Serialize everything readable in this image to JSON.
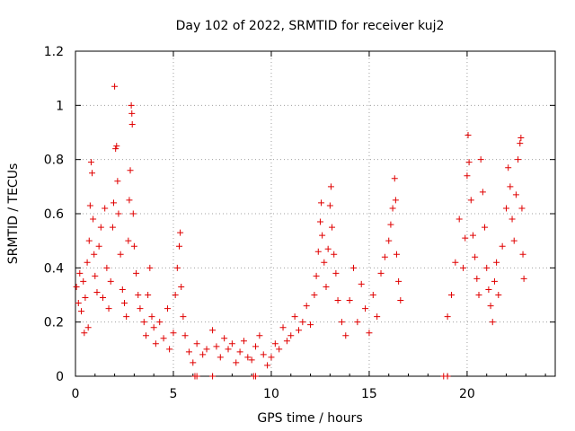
{
  "chart_data": {
    "type": "scatter",
    "title": "Day 102 of 2022, SRMTID for receiver kuj2",
    "xlabel": "GPS time / hours",
    "ylabel": "SRMTID / TECUs",
    "xlim": [
      0,
      24.5
    ],
    "ylim": [
      0,
      1.2
    ],
    "xticks": [
      0,
      5,
      10,
      15,
      20
    ],
    "xtick_labels": [
      "0",
      "5",
      "10",
      "15",
      "20"
    ],
    "yticks": [
      0,
      0.2,
      0.4,
      0.6,
      0.8,
      1,
      1.2
    ],
    "ytick_labels": [
      "0",
      "0.2",
      "0.4",
      "0.6",
      "0.8",
      "1",
      "1.2"
    ],
    "grid": true,
    "marker": "plus",
    "color": "#e00000",
    "series": [
      {
        "name": "SRMTID",
        "points": [
          [
            0.05,
            0.33
          ],
          [
            0.15,
            0.27
          ],
          [
            0.22,
            0.38
          ],
          [
            0.3,
            0.24
          ],
          [
            0.4,
            0.35
          ],
          [
            0.45,
            0.16
          ],
          [
            0.5,
            0.29
          ],
          [
            0.6,
            0.42
          ],
          [
            0.65,
            0.18
          ],
          [
            0.7,
            0.5
          ],
          [
            0.75,
            0.63
          ],
          [
            0.8,
            0.79
          ],
          [
            0.85,
            0.75
          ],
          [
            0.9,
            0.58
          ],
          [
            0.95,
            0.45
          ],
          [
            1.0,
            0.37
          ],
          [
            1.1,
            0.31
          ],
          [
            1.2,
            0.48
          ],
          [
            1.3,
            0.55
          ],
          [
            1.4,
            0.29
          ],
          [
            1.5,
            0.62
          ],
          [
            1.6,
            0.4
          ],
          [
            1.7,
            0.25
          ],
          [
            1.8,
            0.35
          ],
          [
            1.9,
            0.55
          ],
          [
            1.95,
            0.64
          ],
          [
            2.0,
            1.07
          ],
          [
            2.05,
            0.84
          ],
          [
            2.1,
            0.85
          ],
          [
            2.15,
            0.72
          ],
          [
            2.2,
            0.6
          ],
          [
            2.3,
            0.45
          ],
          [
            2.4,
            0.32
          ],
          [
            2.5,
            0.27
          ],
          [
            2.6,
            0.22
          ],
          [
            2.7,
            0.5
          ],
          [
            2.75,
            0.65
          ],
          [
            2.8,
            0.76
          ],
          [
            2.85,
            1.0
          ],
          [
            2.88,
            0.97
          ],
          [
            2.9,
            0.93
          ],
          [
            2.95,
            0.6
          ],
          [
            3.0,
            0.48
          ],
          [
            3.1,
            0.38
          ],
          [
            3.2,
            0.3
          ],
          [
            3.3,
            0.25
          ],
          [
            3.5,
            0.2
          ],
          [
            3.6,
            0.15
          ],
          [
            3.7,
            0.3
          ],
          [
            3.8,
            0.4
          ],
          [
            3.9,
            0.22
          ],
          [
            4.0,
            0.18
          ],
          [
            4.1,
            0.12
          ],
          [
            4.3,
            0.2
          ],
          [
            4.5,
            0.14
          ],
          [
            4.7,
            0.25
          ],
          [
            4.8,
            0.1
          ],
          [
            5.0,
            0.16
          ],
          [
            5.1,
            0.3
          ],
          [
            5.2,
            0.4
          ],
          [
            5.3,
            0.48
          ],
          [
            5.35,
            0.53
          ],
          [
            5.4,
            0.33
          ],
          [
            5.5,
            0.22
          ],
          [
            5.6,
            0.15
          ],
          [
            5.8,
            0.09
          ],
          [
            6.0,
            0.05
          ],
          [
            6.2,
            0.12
          ],
          [
            6.5,
            0.08
          ],
          [
            6.7,
            0.1
          ],
          [
            7.0,
            0.17
          ],
          [
            7.2,
            0.11
          ],
          [
            7.4,
            0.07
          ],
          [
            7.6,
            0.14
          ],
          [
            7.8,
            0.1
          ],
          [
            8.0,
            0.12
          ],
          [
            8.2,
            0.05
          ],
          [
            8.4,
            0.09
          ],
          [
            8.6,
            0.13
          ],
          [
            8.8,
            0.07
          ],
          [
            9.0,
            0.06
          ],
          [
            9.2,
            0.11
          ],
          [
            9.4,
            0.15
          ],
          [
            9.6,
            0.08
          ],
          [
            9.8,
            0.04
          ],
          [
            10.0,
            0.07
          ],
          [
            10.2,
            0.12
          ],
          [
            10.4,
            0.1
          ],
          [
            10.6,
            0.18
          ],
          [
            10.8,
            0.13
          ],
          [
            11.0,
            0.15
          ],
          [
            11.2,
            0.22
          ],
          [
            11.4,
            0.17
          ],
          [
            11.6,
            0.2
          ],
          [
            11.8,
            0.26
          ],
          [
            12.0,
            0.19
          ],
          [
            12.2,
            0.3
          ],
          [
            12.3,
            0.37
          ],
          [
            12.4,
            0.46
          ],
          [
            12.5,
            0.57
          ],
          [
            12.55,
            0.64
          ],
          [
            12.6,
            0.52
          ],
          [
            12.7,
            0.42
          ],
          [
            12.8,
            0.33
          ],
          [
            12.9,
            0.47
          ],
          [
            13.0,
            0.63
          ],
          [
            13.05,
            0.7
          ],
          [
            13.1,
            0.55
          ],
          [
            13.2,
            0.45
          ],
          [
            13.3,
            0.38
          ],
          [
            13.4,
            0.28
          ],
          [
            13.6,
            0.2
          ],
          [
            13.8,
            0.15
          ],
          [
            14.0,
            0.28
          ],
          [
            14.2,
            0.4
          ],
          [
            14.4,
            0.2
          ],
          [
            14.6,
            0.34
          ],
          [
            14.8,
            0.25
          ],
          [
            15.0,
            0.16
          ],
          [
            15.2,
            0.3
          ],
          [
            15.4,
            0.22
          ],
          [
            15.6,
            0.38
          ],
          [
            15.8,
            0.44
          ],
          [
            16.0,
            0.5
          ],
          [
            16.1,
            0.56
          ],
          [
            16.2,
            0.62
          ],
          [
            16.3,
            0.73
          ],
          [
            16.35,
            0.65
          ],
          [
            16.4,
            0.45
          ],
          [
            16.5,
            0.35
          ],
          [
            16.6,
            0.28
          ],
          [
            19.0,
            0.22
          ],
          [
            19.2,
            0.3
          ],
          [
            19.4,
            0.42
          ],
          [
            19.6,
            0.58
          ],
          [
            19.8,
            0.4
          ],
          [
            19.9,
            0.51
          ],
          [
            20.0,
            0.74
          ],
          [
            20.05,
            0.89
          ],
          [
            20.1,
            0.79
          ],
          [
            20.2,
            0.65
          ],
          [
            20.3,
            0.52
          ],
          [
            20.4,
            0.44
          ],
          [
            20.5,
            0.36
          ],
          [
            20.6,
            0.3
          ],
          [
            20.7,
            0.8
          ],
          [
            20.8,
            0.68
          ],
          [
            20.9,
            0.55
          ],
          [
            21.0,
            0.4
          ],
          [
            21.1,
            0.32
          ],
          [
            21.2,
            0.26
          ],
          [
            21.3,
            0.2
          ],
          [
            21.4,
            0.35
          ],
          [
            21.5,
            0.42
          ],
          [
            21.6,
            0.3
          ],
          [
            21.8,
            0.48
          ],
          [
            22.0,
            0.62
          ],
          [
            22.1,
            0.77
          ],
          [
            22.2,
            0.7
          ],
          [
            22.3,
            0.58
          ],
          [
            22.4,
            0.5
          ],
          [
            22.5,
            0.67
          ],
          [
            22.6,
            0.8
          ],
          [
            22.7,
            0.86
          ],
          [
            22.75,
            0.88
          ],
          [
            22.8,
            0.62
          ],
          [
            22.85,
            0.45
          ],
          [
            22.9,
            0.36
          ]
        ]
      }
    ],
    "zero_markers": [
      6.1,
      6.2,
      7.0,
      9.1,
      9.2,
      18.8,
      19.0
    ]
  }
}
